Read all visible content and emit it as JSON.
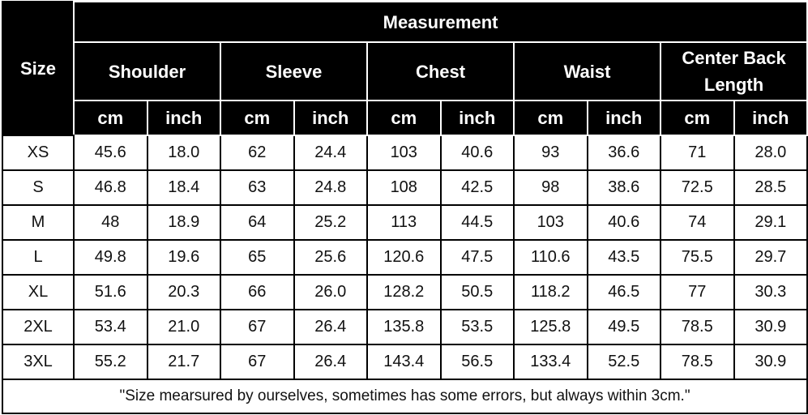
{
  "header": {
    "size": "Size",
    "title": "Measurement",
    "groups": [
      "Shoulder",
      "Sleeve",
      "Chest",
      "Waist",
      "Center Back Length"
    ],
    "units": [
      "cm",
      "inch",
      "cm",
      "inch",
      "cm",
      "inch",
      "cm",
      "inch",
      "cm",
      "inch"
    ]
  },
  "table": {
    "rows": [
      [
        "XS",
        "45.6",
        "18.0",
        "62",
        "24.4",
        "103",
        "40.6",
        "93",
        "36.6",
        "71",
        "28.0"
      ],
      [
        "S",
        "46.8",
        "18.4",
        "63",
        "24.8",
        "108",
        "42.5",
        "98",
        "38.6",
        "72.5",
        "28.5"
      ],
      [
        "M",
        "48",
        "18.9",
        "64",
        "25.2",
        "113",
        "44.5",
        "103",
        "40.6",
        "74",
        "29.1"
      ],
      [
        "L",
        "49.8",
        "19.6",
        "65",
        "25.6",
        "120.6",
        "47.5",
        "110.6",
        "43.5",
        "75.5",
        "29.7"
      ],
      [
        "XL",
        "51.6",
        "20.3",
        "66",
        "26.0",
        "128.2",
        "50.5",
        "118.2",
        "46.5",
        "77",
        "30.3"
      ],
      [
        "2XL",
        "53.4",
        "21.0",
        "67",
        "26.4",
        "135.8",
        "53.5",
        "125.8",
        "49.5",
        "78.5",
        "30.9"
      ],
      [
        "3XL",
        "55.2",
        "21.7",
        "67",
        "26.4",
        "143.4",
        "56.5",
        "133.4",
        "52.5",
        "78.5",
        "30.9"
      ]
    ]
  },
  "footer": {
    "note": "\"Size mearsured by ourselves, sometimes has some errors, but always within 3cm.\""
  }
}
